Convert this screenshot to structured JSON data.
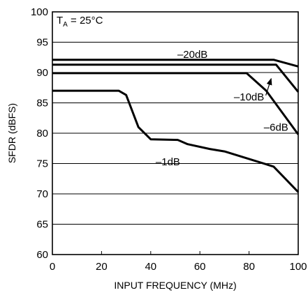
{
  "chart_data": {
    "type": "line",
    "xlabel": "INPUT FREQUENCY (MHz)",
    "ylabel": "SFDR (dBFS)",
    "xlim": [
      0,
      100
    ],
    "ylim": [
      60,
      100
    ],
    "x_ticks": [
      "0",
      "20",
      "40",
      "60",
      "80",
      "100"
    ],
    "y_ticks": [
      "60",
      "65",
      "70",
      "75",
      "80",
      "85",
      "90",
      "95",
      "100"
    ],
    "grid": "horizontal",
    "condition": {
      "main": "T",
      "sub": "A",
      "rest": " = 25°C"
    },
    "series": [
      {
        "name": "–20dB",
        "x": [
          0,
          90,
          100
        ],
        "y": [
          92.1,
          92.1,
          91.0
        ]
      },
      {
        "name": "–10dB",
        "x": [
          0,
          91,
          100
        ],
        "y": [
          91.3,
          91.3,
          86.8
        ]
      },
      {
        "name": "–6dB",
        "x": [
          0,
          79,
          87,
          100
        ],
        "y": [
          89.9,
          89.9,
          87.0,
          79.8
        ]
      },
      {
        "name": "–1dB",
        "x": [
          0,
          27,
          30,
          35,
          40,
          51,
          55,
          64,
          70,
          90,
          100
        ],
        "y": [
          87.0,
          87.0,
          86.3,
          81.0,
          79.0,
          78.9,
          78.2,
          77.4,
          77.0,
          74.5,
          70.3
        ]
      }
    ],
    "annotations": [
      {
        "text": "–20dB",
        "x": 57,
        "y": 93.0,
        "arrow": false
      },
      {
        "text": "–10dB",
        "x": 80,
        "y": 86.0,
        "arrow": true,
        "arrow_to_x": 89,
        "arrow_to_y": 89.0
      },
      {
        "text": "–6dB",
        "x": 91.0,
        "y": 81.0,
        "arrow": false
      },
      {
        "text": "–1dB",
        "x": 47,
        "y": 75.3,
        "arrow": false
      }
    ]
  }
}
